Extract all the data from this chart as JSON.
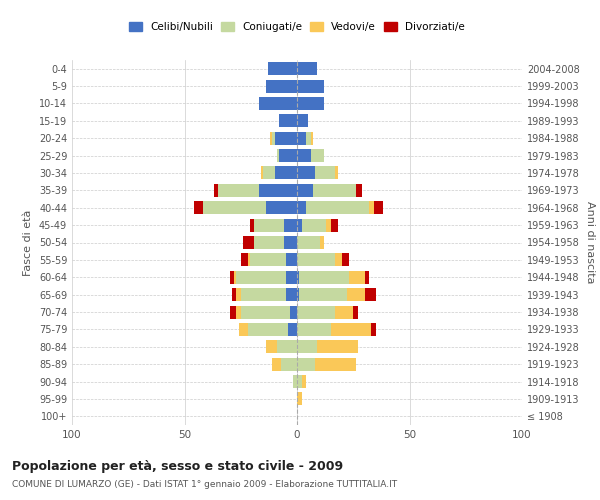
{
  "age_groups": [
    "100+",
    "95-99",
    "90-94",
    "85-89",
    "80-84",
    "75-79",
    "70-74",
    "65-69",
    "60-64",
    "55-59",
    "50-54",
    "45-49",
    "40-44",
    "35-39",
    "30-34",
    "25-29",
    "20-24",
    "15-19",
    "10-14",
    "5-9",
    "0-4"
  ],
  "birth_years": [
    "≤ 1908",
    "1909-1913",
    "1914-1918",
    "1919-1923",
    "1924-1928",
    "1929-1933",
    "1934-1938",
    "1939-1943",
    "1944-1948",
    "1949-1953",
    "1954-1958",
    "1959-1963",
    "1964-1968",
    "1969-1973",
    "1974-1978",
    "1979-1983",
    "1984-1988",
    "1989-1993",
    "1994-1998",
    "1999-2003",
    "2004-2008"
  ],
  "males": {
    "celibi": [
      0,
      0,
      0,
      0,
      0,
      4,
      3,
      5,
      5,
      5,
      6,
      6,
      14,
      17,
      10,
      8,
      10,
      8,
      17,
      14,
      13
    ],
    "coniugati": [
      0,
      0,
      2,
      7,
      9,
      18,
      22,
      20,
      22,
      16,
      13,
      13,
      28,
      18,
      5,
      1,
      1,
      0,
      0,
      0,
      0
    ],
    "vedovi": [
      0,
      0,
      0,
      4,
      5,
      4,
      2,
      2,
      1,
      1,
      0,
      0,
      0,
      0,
      1,
      0,
      1,
      0,
      0,
      0,
      0
    ],
    "divorziati": [
      0,
      0,
      0,
      0,
      0,
      0,
      3,
      2,
      2,
      3,
      5,
      2,
      4,
      2,
      0,
      0,
      0,
      0,
      0,
      0,
      0
    ]
  },
  "females": {
    "nubili": [
      0,
      0,
      0,
      0,
      0,
      0,
      0,
      1,
      1,
      0,
      0,
      2,
      4,
      7,
      8,
      6,
      4,
      5,
      12,
      12,
      9
    ],
    "coniugate": [
      0,
      0,
      2,
      8,
      9,
      15,
      17,
      21,
      22,
      17,
      10,
      11,
      28,
      19,
      9,
      6,
      2,
      0,
      0,
      0,
      0
    ],
    "vedove": [
      0,
      2,
      2,
      18,
      18,
      18,
      8,
      8,
      7,
      3,
      2,
      2,
      2,
      0,
      1,
      0,
      1,
      0,
      0,
      0,
      0
    ],
    "divorziate": [
      0,
      0,
      0,
      0,
      0,
      2,
      2,
      5,
      2,
      3,
      0,
      3,
      4,
      3,
      0,
      0,
      0,
      0,
      0,
      0,
      0
    ]
  },
  "colors": {
    "celibi": "#4472C4",
    "coniugati": "#C5D9A0",
    "vedovi": "#FAC858",
    "divorziati": "#C00000"
  },
  "title": "Popolazione per età, sesso e stato civile - 2009",
  "subtitle": "COMUNE DI LUMARZO (GE) - Dati ISTAT 1° gennaio 2009 - Elaborazione TUTTITALIA.IT",
  "ylabel_left": "Fasce di età",
  "ylabel_right": "Anni di nascita",
  "xlim": 100,
  "legend_labels": [
    "Celibi/Nubili",
    "Coniugati/e",
    "Vedovi/e",
    "Divorziati/e"
  ],
  "background_color": "#ffffff"
}
